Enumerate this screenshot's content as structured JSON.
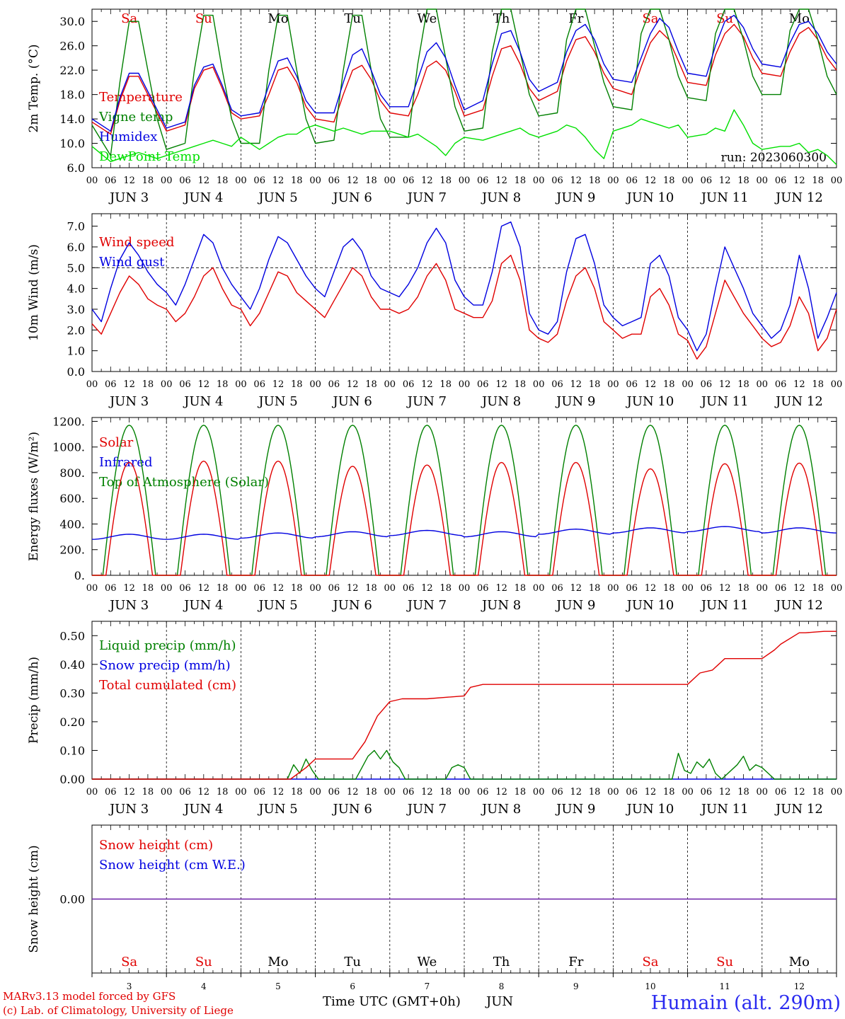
{
  "panels": [
    {
      "id": "temp",
      "ylabel": "2m Temp. (°C)",
      "ylim": [
        6,
        32
      ],
      "yticks": [
        6,
        10,
        14,
        18,
        22,
        26,
        30
      ],
      "ytick_labels": [
        "6.0",
        "10.0",
        "14.0",
        "18.0",
        "22.0",
        "26.0",
        "30.0"
      ],
      "legend": [
        {
          "label": "Temperature",
          "color": "#e00000"
        },
        {
          "label": "Vigne temp",
          "color": "#008000"
        },
        {
          "label": "Humidex",
          "color": "#0000e0"
        },
        {
          "label": "DewPoint Temp",
          "color": "#00e000"
        }
      ],
      "annotation": "run: 2023060300",
      "day_names": [
        "Sa",
        "Su",
        "Mo",
        "Tu",
        "We",
        "Th",
        "Fr",
        "Sa",
        "Su",
        "Mo"
      ],
      "weekend": [
        true,
        true,
        false,
        false,
        false,
        false,
        false,
        true,
        true,
        false
      ]
    },
    {
      "id": "wind",
      "ylabel": "10m Wind (m/s)",
      "ylim": [
        0,
        7.6
      ],
      "yticks": [
        0,
        1,
        2,
        3,
        4,
        5,
        6,
        7
      ],
      "ytick_labels": [
        "0.0",
        "1.0",
        "2.0",
        "3.0",
        "4.0",
        "5.0",
        "6.0",
        "7.0"
      ],
      "reference_line": 5,
      "legend": [
        {
          "label": "Wind speed",
          "color": "#e00000"
        },
        {
          "label": "Wind gust",
          "color": "#0000e0"
        }
      ]
    },
    {
      "id": "energy",
      "ylabel": "Energy fluxes (W/m²)",
      "ylim": [
        0,
        1230
      ],
      "yticks": [
        0,
        200,
        400,
        600,
        800,
        1000,
        1200
      ],
      "ytick_labels": [
        "0.",
        "200.",
        "400.",
        "600.",
        "800.",
        "1000.",
        "1200."
      ],
      "legend": [
        {
          "label": "Solar",
          "color": "#e00000"
        },
        {
          "label": "Infrared",
          "color": "#0000e0"
        },
        {
          "label": "Top of Atmosphere (Solar)",
          "color": "#008000"
        }
      ]
    },
    {
      "id": "precip",
      "ylabel": "Precip (mm/h)",
      "ylim": [
        0,
        0.55
      ],
      "yticks": [
        0,
        0.1,
        0.2,
        0.3,
        0.4,
        0.5
      ],
      "ytick_labels": [
        "0.00",
        "0.10",
        "0.20",
        "0.30",
        "0.40",
        "0.50"
      ],
      "legend": [
        {
          "label": "Liquid precip (mm/h)",
          "color": "#008000"
        },
        {
          "label": "Snow precip (mm/h)",
          "color": "#0000e0"
        },
        {
          "label": "Total cumulated (cm)",
          "color": "#e00000"
        }
      ]
    },
    {
      "id": "snow",
      "ylabel": "Snow height (cm)",
      "ylim": [
        -1,
        1
      ],
      "yticks": [
        0
      ],
      "ytick_labels": [
        "0.00"
      ],
      "legend": [
        {
          "label": "Snow height (cm)",
          "color": "#e00000"
        },
        {
          "label": "Snow height (cm W.E.)",
          "color": "#0000e0"
        }
      ],
      "day_names": [
        "Sa",
        "Su",
        "Mo",
        "Tu",
        "We",
        "Th",
        "Fr",
        "Sa",
        "Su",
        "Mo"
      ],
      "weekend": [
        true,
        true,
        false,
        false,
        false,
        false,
        false,
        true,
        true,
        false
      ],
      "day_numbers": [
        "3",
        "4",
        "5",
        "6",
        "7",
        "8",
        "9",
        "10",
        "11",
        "12"
      ]
    }
  ],
  "x_axis": {
    "hour_ticks": [
      "00",
      "06",
      "12",
      "18"
    ],
    "end_tick": "00",
    "day_labels": [
      "JUN  3",
      "JUN  4",
      "JUN  5",
      "JUN  6",
      "JUN  7",
      "JUN  8",
      "JUN  9",
      "JUN 10",
      "JUN 11",
      "JUN 12"
    ],
    "title": "Time UTC (GMT+0h)",
    "month": "JUN"
  },
  "footer": {
    "credit_line1": "MARv3.13 model forced by GFS",
    "credit_line2": "(c) Lab. of Climatology, University of Liege",
    "station": "Humain (alt. 290m)",
    "credit_color": "#e00000",
    "station_color": "#2a2af0"
  },
  "chart_data": [
    {
      "type": "line",
      "title": "",
      "ylabel": "2m Temp. (°C)",
      "x_unit": "hours since 2023-06-03 00 UTC",
      "x": [
        0,
        6,
        9,
        12,
        15,
        18,
        21,
        24,
        30,
        33,
        36,
        39,
        42,
        45,
        48,
        54,
        57,
        60,
        63,
        66,
        69,
        72,
        78,
        81,
        84,
        87,
        90,
        93,
        96,
        102,
        105,
        108,
        111,
        114,
        117,
        120,
        126,
        129,
        132,
        135,
        138,
        141,
        144,
        150,
        153,
        156,
        159,
        162,
        165,
        168,
        174,
        177,
        180,
        183,
        186,
        189,
        192,
        198,
        201,
        204,
        207,
        210,
        213,
        216,
        222,
        225,
        228,
        231,
        234,
        237,
        240
      ],
      "series": [
        {
          "name": "Temperature",
          "color": "#e00000",
          "values": [
            13.5,
            11.5,
            17.0,
            21.0,
            21.0,
            18.0,
            15.0,
            12.0,
            13.0,
            19.0,
            22.0,
            22.5,
            19.0,
            15.0,
            14.0,
            14.5,
            18.0,
            22.0,
            22.5,
            20.0,
            16.0,
            14.0,
            13.5,
            18.0,
            22.0,
            22.8,
            20.5,
            17.0,
            15.0,
            14.5,
            18.0,
            22.5,
            23.5,
            22.0,
            18.5,
            14.5,
            15.5,
            21.0,
            25.5,
            26.0,
            23.0,
            19.0,
            17.0,
            18.5,
            23.5,
            27.0,
            27.5,
            25.0,
            21.5,
            19.0,
            18.0,
            22.5,
            26.5,
            28.5,
            27.0,
            23.5,
            20.0,
            19.5,
            24.5,
            28.0,
            29.5,
            27.5,
            24.0,
            21.5,
            21.0,
            25.0,
            28.0,
            29.0,
            27.0,
            24.0,
            22.0
          ]
        },
        {
          "name": "Vigne temp",
          "color": "#008000",
          "values": [
            13.0,
            8.0,
            20.0,
            30.0,
            30.0,
            22.0,
            14.0,
            9.0,
            10.0,
            22.0,
            31.0,
            31.0,
            22.0,
            14.0,
            10.0,
            10.0,
            22.0,
            31.0,
            31.0,
            22.0,
            14.0,
            10.0,
            10.5,
            22.0,
            31.0,
            31.0,
            22.0,
            14.0,
            11.0,
            11.0,
            23.0,
            32.0,
            32.0,
            24.0,
            16.0,
            12.0,
            12.5,
            25.0,
            32.0,
            32.0,
            25.0,
            18.0,
            14.5,
            15.0,
            27.0,
            32.0,
            32.0,
            26.0,
            20.0,
            16.0,
            15.5,
            28.0,
            32.0,
            32.0,
            27.0,
            21.0,
            17.5,
            17.0,
            28.0,
            32.0,
            32.0,
            27.0,
            21.0,
            18.0,
            18.0,
            28.5,
            32.0,
            32.0,
            27.0,
            21.0,
            18.0
          ]
        },
        {
          "name": "Humidex",
          "color": "#0000e0",
          "values": [
            14.0,
            12.0,
            17.5,
            21.5,
            21.5,
            18.5,
            15.5,
            12.5,
            13.5,
            19.5,
            22.5,
            23.0,
            19.5,
            15.5,
            14.5,
            15.0,
            19.5,
            23.5,
            24.0,
            21.0,
            17.0,
            15.0,
            15.0,
            20.0,
            24.5,
            25.5,
            22.0,
            18.0,
            16.0,
            16.0,
            20.5,
            25.0,
            26.5,
            24.0,
            19.5,
            15.5,
            17.0,
            23.0,
            28.0,
            28.5,
            25.0,
            20.5,
            18.5,
            20.0,
            25.0,
            28.5,
            29.5,
            27.0,
            23.0,
            20.5,
            20.0,
            24.0,
            28.0,
            30.5,
            29.0,
            25.0,
            21.5,
            21.0,
            26.0,
            30.0,
            31.0,
            29.0,
            25.5,
            23.0,
            22.5,
            26.5,
            29.5,
            30.0,
            28.0,
            25.0,
            23.0
          ]
        },
        {
          "name": "DewPoint Temp",
          "color": "#00e000",
          "values": [
            9.5,
            7.0,
            7.5,
            8.0,
            8.5,
            8.0,
            7.5,
            8.0,
            9.0,
            9.5,
            10.0,
            10.5,
            10.0,
            9.5,
            11.0,
            9.0,
            10.0,
            11.0,
            11.5,
            11.5,
            12.5,
            13.0,
            12.0,
            12.5,
            12.0,
            11.5,
            12.0,
            12.0,
            12.0,
            11.0,
            11.5,
            10.5,
            9.5,
            8.0,
            10.0,
            11.0,
            10.5,
            11.0,
            11.5,
            12.0,
            12.5,
            11.5,
            11.0,
            12.0,
            13.0,
            12.5,
            11.0,
            9.0,
            7.5,
            12.0,
            13.0,
            14.0,
            13.5,
            13.0,
            12.5,
            13.0,
            11.0,
            11.5,
            12.5,
            12.0,
            15.5,
            13.0,
            10.0,
            9.0,
            9.5,
            9.5,
            10.0,
            8.5,
            9.0,
            8.0,
            6.5
          ]
        }
      ]
    },
    {
      "type": "line",
      "title": "",
      "ylabel": "10m Wind (m/s)",
      "x_unit": "hours since 2023-06-03 00 UTC",
      "x": [
        0,
        3,
        6,
        9,
        12,
        15,
        18,
        21,
        24,
        27,
        30,
        33,
        36,
        39,
        42,
        45,
        48,
        51,
        54,
        57,
        60,
        63,
        66,
        69,
        72,
        75,
        78,
        81,
        84,
        87,
        90,
        93,
        96,
        99,
        102,
        105,
        108,
        111,
        114,
        117,
        120,
        123,
        126,
        129,
        132,
        135,
        138,
        141,
        144,
        147,
        150,
        153,
        156,
        159,
        162,
        165,
        168,
        171,
        174,
        177,
        180,
        183,
        186,
        189,
        192,
        195,
        198,
        201,
        204,
        207,
        210,
        213,
        216,
        219,
        222,
        225,
        228,
        231,
        234,
        237,
        240
      ],
      "series": [
        {
          "name": "Wind speed",
          "color": "#e00000",
          "values": [
            2.3,
            1.8,
            2.8,
            3.8,
            4.6,
            4.2,
            3.5,
            3.2,
            3.0,
            2.4,
            2.8,
            3.6,
            4.6,
            5.0,
            4.0,
            3.2,
            3.0,
            2.2,
            2.8,
            3.8,
            4.8,
            4.6,
            3.8,
            3.4,
            3.0,
            2.6,
            3.4,
            4.2,
            5.0,
            4.6,
            3.6,
            3.0,
            3.0,
            2.8,
            3.0,
            3.6,
            4.6,
            5.2,
            4.4,
            3.0,
            2.8,
            2.6,
            2.6,
            3.4,
            5.2,
            5.6,
            4.4,
            2.0,
            1.6,
            1.4,
            1.8,
            3.4,
            4.6,
            5.0,
            4.0,
            2.4,
            2.0,
            1.6,
            1.8,
            1.8,
            3.6,
            4.0,
            3.2,
            1.8,
            1.5,
            0.6,
            1.2,
            2.8,
            4.4,
            3.6,
            2.8,
            2.2,
            1.6,
            1.2,
            1.4,
            2.2,
            3.6,
            2.8,
            1.0,
            1.6,
            3.0
          ]
        },
        {
          "name": "Wind gust",
          "color": "#0000e0",
          "values": [
            3.0,
            2.4,
            4.0,
            5.4,
            6.2,
            5.6,
            4.8,
            4.2,
            3.8,
            3.2,
            4.2,
            5.4,
            6.6,
            6.2,
            5.0,
            4.2,
            3.6,
            3.0,
            4.0,
            5.4,
            6.5,
            6.2,
            5.4,
            4.6,
            4.0,
            3.6,
            4.8,
            6.0,
            6.4,
            5.8,
            4.6,
            4.0,
            3.8,
            3.6,
            4.2,
            5.0,
            6.2,
            6.9,
            6.2,
            4.4,
            3.6,
            3.2,
            3.2,
            4.8,
            7.0,
            7.2,
            6.0,
            2.8,
            2.0,
            1.8,
            2.4,
            4.8,
            6.4,
            6.6,
            5.2,
            3.2,
            2.6,
            2.2,
            2.4,
            2.6,
            5.2,
            5.6,
            4.6,
            2.6,
            2.0,
            1.0,
            1.8,
            4.0,
            6.0,
            5.0,
            4.0,
            2.8,
            2.2,
            1.6,
            2.0,
            3.2,
            5.6,
            4.0,
            1.6,
            2.6,
            3.8
          ]
        }
      ]
    },
    {
      "type": "line",
      "title": "",
      "ylabel": "Energy fluxes (W/m²)",
      "x_unit": "hours since 2023-06-03 00 UTC",
      "series": [
        {
          "name": "Solar",
          "color": "#e00000",
          "daily_peak": [
            880,
            890,
            890,
            850,
            860,
            880,
            880,
            830,
            870,
            875
          ]
        },
        {
          "name": "Infrared",
          "color": "#0000e0",
          "daily_mean": [
            300,
            300,
            310,
            320,
            330,
            320,
            340,
            350,
            360,
            350
          ]
        },
        {
          "name": "Top of Atmosphere (Solar)",
          "color": "#008000",
          "daily_peak": [
            1170,
            1170,
            1170,
            1170,
            1170,
            1170,
            1170,
            1170,
            1170,
            1170
          ]
        }
      ]
    },
    {
      "type": "line",
      "title": "",
      "ylabel": "Precip (mm/h)",
      "x_unit": "hours since 2023-06-03 00 UTC",
      "series": [
        {
          "name": "Total cumulated (cm)",
          "color": "#e00000",
          "x": [
            0,
            64,
            69,
            72,
            84,
            88,
            92,
            96,
            100,
            108,
            120,
            122,
            126,
            128,
            130,
            192,
            196,
            200,
            204,
            210,
            216,
            220,
            222,
            228,
            230,
            236,
            240
          ],
          "values": [
            0,
            0,
            0.04,
            0.07,
            0.07,
            0.13,
            0.22,
            0.27,
            0.28,
            0.28,
            0.29,
            0.32,
            0.33,
            0.33,
            0.33,
            0.33,
            0.37,
            0.38,
            0.42,
            0.42,
            0.42,
            0.45,
            0.47,
            0.51,
            0.51,
            0.515,
            0.515
          ]
        },
        {
          "name": "Liquid precip (mm/h)",
          "color": "#008000",
          "x": [
            0,
            63,
            65,
            67,
            69,
            71,
            73,
            85,
            87,
            89,
            91,
            93,
            95,
            97,
            99,
            101,
            114,
            116,
            118,
            120,
            122,
            187,
            189,
            191,
            193,
            195,
            197,
            199,
            201,
            203,
            208,
            210,
            212,
            214,
            216,
            218,
            220,
            240
          ],
          "values": [
            0,
            0,
            0.05,
            0.02,
            0.07,
            0.03,
            0,
            0,
            0.04,
            0.08,
            0.1,
            0.07,
            0.1,
            0.06,
            0.04,
            0,
            0,
            0.04,
            0.05,
            0.04,
            0,
            0,
            0.09,
            0.03,
            0.02,
            0.06,
            0.04,
            0.07,
            0.02,
            0,
            0.05,
            0.08,
            0.03,
            0.05,
            0.04,
            0.02,
            0,
            0
          ]
        },
        {
          "name": "Snow precip (mm/h)",
          "color": "#0000e0",
          "x": [
            0,
            240
          ],
          "values": [
            0,
            0
          ]
        }
      ]
    },
    {
      "type": "line",
      "title": "",
      "ylabel": "Snow height (cm)",
      "x_unit": "hours since 2023-06-03 00 UTC",
      "series": [
        {
          "name": "Snow height (cm)",
          "color": "#e00000",
          "x": [
            0,
            240
          ],
          "values": [
            0,
            0
          ]
        },
        {
          "name": "Snow height (cm W.E.)",
          "color": "#0000e0",
          "x": [
            0,
            240
          ],
          "values": [
            0,
            0
          ]
        }
      ]
    }
  ]
}
